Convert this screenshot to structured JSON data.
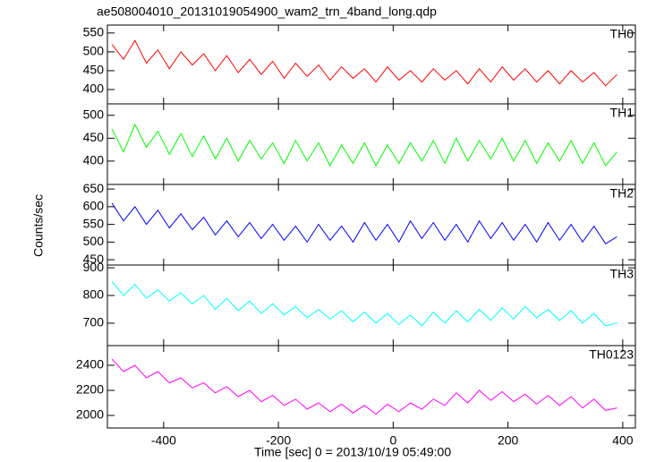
{
  "chart_data": [
    {
      "type": "line",
      "title": "ae508004010_20131019054900_wam2_trn_4band_long.qdp",
      "x": [
        -490,
        -470,
        -450,
        -430,
        -410,
        -390,
        -370,
        -350,
        -330,
        -310,
        -290,
        -270,
        -250,
        -230,
        -210,
        -190,
        -170,
        -150,
        -130,
        -110,
        -90,
        -70,
        -50,
        -30,
        -10,
        10,
        30,
        50,
        70,
        90,
        110,
        130,
        150,
        170,
        190,
        210,
        230,
        250,
        270,
        290,
        310,
        330,
        350,
        370,
        390
      ],
      "series": [
        {
          "name": "TH0",
          "color": "#ff0000",
          "values": [
            520,
            480,
            530,
            470,
            505,
            455,
            500,
            465,
            495,
            450,
            490,
            445,
            480,
            440,
            475,
            430,
            470,
            435,
            465,
            425,
            460,
            430,
            455,
            420,
            460,
            425,
            450,
            420,
            455,
            425,
            450,
            415,
            455,
            420,
            460,
            425,
            455,
            420,
            450,
            415,
            450,
            420,
            445,
            410,
            440
          ]
        }
      ],
      "xlim": [
        -498,
        422
      ],
      "ylim": [
        362,
        571
      ],
      "yticks": [
        400,
        450,
        500,
        550
      ]
    },
    {
      "type": "line",
      "x": [
        -490,
        -470,
        -450,
        -430,
        -410,
        -390,
        -370,
        -350,
        -330,
        -310,
        -290,
        -270,
        -250,
        -230,
        -210,
        -190,
        -170,
        -150,
        -130,
        -110,
        -90,
        -70,
        -50,
        -30,
        -10,
        10,
        30,
        50,
        70,
        90,
        110,
        130,
        150,
        170,
        190,
        210,
        230,
        250,
        270,
        290,
        310,
        330,
        350,
        370,
        390
      ],
      "series": [
        {
          "name": "TH1",
          "color": "#00ff00",
          "values": [
            470,
            420,
            480,
            430,
            465,
            415,
            460,
            410,
            455,
            405,
            450,
            400,
            445,
            405,
            440,
            395,
            445,
            400,
            440,
            390,
            435,
            395,
            440,
            390,
            435,
            395,
            440,
            400,
            445,
            395,
            450,
            400,
            445,
            405,
            450,
            400,
            445,
            395,
            440,
            400,
            445,
            395,
            440,
            390,
            420
          ]
        }
      ],
      "xlim": [
        -498,
        422
      ],
      "ylim": [
        349,
        525
      ],
      "yticks": [
        400,
        450,
        500
      ]
    },
    {
      "type": "line",
      "ylabel": "Counts/sec",
      "x": [
        -490,
        -470,
        -450,
        -430,
        -410,
        -390,
        -370,
        -350,
        -330,
        -310,
        -290,
        -270,
        -250,
        -230,
        -210,
        -190,
        -170,
        -150,
        -130,
        -110,
        -90,
        -70,
        -50,
        -30,
        -10,
        10,
        30,
        50,
        70,
        90,
        110,
        130,
        150,
        170,
        190,
        210,
        230,
        250,
        270,
        290,
        310,
        330,
        350,
        370,
        390
      ],
      "series": [
        {
          "name": "TH2",
          "color": "#0000ff",
          "values": [
            610,
            560,
            600,
            550,
            590,
            540,
            580,
            535,
            570,
            520,
            560,
            515,
            555,
            510,
            550,
            505,
            545,
            500,
            550,
            505,
            545,
            500,
            555,
            505,
            550,
            500,
            560,
            510,
            555,
            505,
            550,
            500,
            560,
            510,
            555,
            505,
            550,
            500,
            555,
            505,
            550,
            500,
            545,
            495,
            515
          ]
        }
      ],
      "xlim": [
        -498,
        422
      ],
      "ylim": [
        435,
        663
      ],
      "yticks": [
        450,
        500,
        550,
        600,
        650
      ]
    },
    {
      "type": "line",
      "x": [
        -490,
        -470,
        -450,
        -430,
        -410,
        -390,
        -370,
        -350,
        -330,
        -310,
        -290,
        -270,
        -250,
        -230,
        -210,
        -190,
        -170,
        -150,
        -130,
        -110,
        -90,
        -70,
        -50,
        -30,
        -10,
        10,
        30,
        50,
        70,
        90,
        110,
        130,
        150,
        170,
        190,
        210,
        230,
        250,
        270,
        290,
        310,
        330,
        350,
        370,
        390
      ],
      "series": [
        {
          "name": "TH3",
          "color": "#00ffff",
          "values": [
            850,
            800,
            840,
            790,
            820,
            780,
            810,
            770,
            800,
            750,
            790,
            745,
            780,
            735,
            770,
            730,
            760,
            720,
            750,
            715,
            745,
            705,
            740,
            700,
            735,
            695,
            730,
            690,
            740,
            700,
            745,
            705,
            750,
            710,
            755,
            715,
            760,
            720,
            750,
            710,
            745,
            700,
            735,
            690,
            700
          ]
        }
      ],
      "xlim": [
        -498,
        422
      ],
      "ylim": [
        619,
        910
      ],
      "yticks": [
        700,
        800,
        900
      ]
    },
    {
      "type": "line",
      "xlabel": "Time [sec] 0 = 2013/10/19 05:49:00",
      "x": [
        -490,
        -470,
        -450,
        -430,
        -410,
        -390,
        -370,
        -350,
        -330,
        -310,
        -290,
        -270,
        -250,
        -230,
        -210,
        -190,
        -170,
        -150,
        -130,
        -110,
        -90,
        -70,
        -50,
        -30,
        -10,
        10,
        30,
        50,
        70,
        90,
        110,
        130,
        150,
        170,
        190,
        210,
        230,
        250,
        270,
        290,
        310,
        330,
        350,
        370,
        390
      ],
      "series": [
        {
          "name": "TH0123",
          "color": "#ff00ff",
          "values": [
            2450,
            2350,
            2400,
            2300,
            2350,
            2260,
            2300,
            2220,
            2260,
            2180,
            2230,
            2150,
            2200,
            2110,
            2160,
            2080,
            2130,
            2050,
            2100,
            2030,
            2090,
            2020,
            2080,
            2010,
            2090,
            2030,
            2100,
            2050,
            2130,
            2080,
            2180,
            2100,
            2200,
            2120,
            2190,
            2110,
            2170,
            2090,
            2160,
            2080,
            2150,
            2060,
            2130,
            2040,
            2060
          ]
        }
      ],
      "xlim": [
        -498,
        422
      ],
      "ylim": [
        1900,
        2557
      ],
      "yticks": [
        2000,
        2200,
        2400
      ],
      "xticks": [
        -400,
        -200,
        0,
        200,
        400
      ]
    }
  ]
}
